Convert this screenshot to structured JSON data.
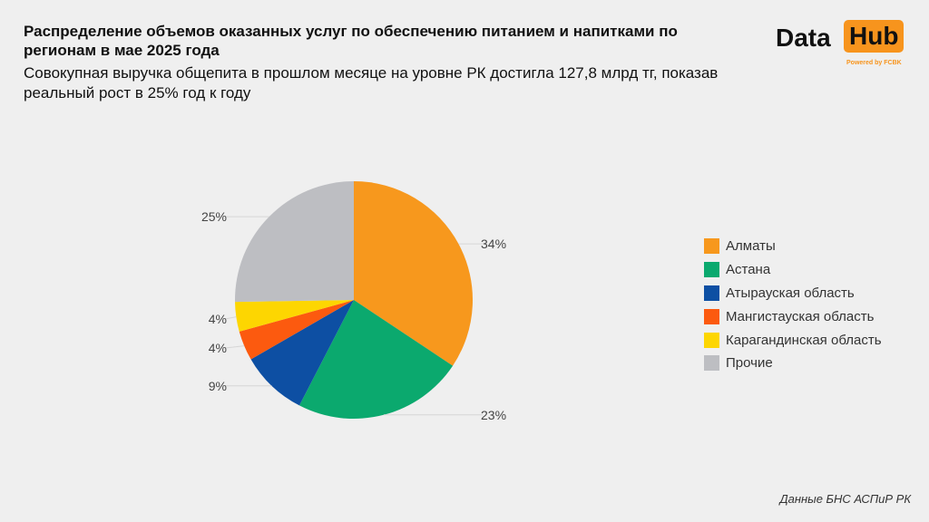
{
  "title": "Распределение объемов оказанных услуг по обеспечению питанием и напитками по регионам в мае 2025 года",
  "subtitle": "Совокупная выручка общепита в прошлом месяце на уровне РК достигла 127,8 млрд тг, показав реальный рост в 25% год к году",
  "logo": {
    "data": "Data",
    "hub": "Hub",
    "powered": "Powered by FCBK",
    "accent": "#f7941d"
  },
  "source": "Данные БНС АСПиР РК",
  "chart_data": {
    "type": "pie",
    "categories": [
      "Алматы",
      "Астана",
      "Атырауская область",
      "Мангистауская область",
      "Карагандинская область",
      "Прочие"
    ],
    "values": [
      34,
      23,
      9,
      4,
      4,
      25
    ],
    "labels": [
      "34%",
      "23%",
      "9%",
      "4%",
      "4%",
      "25%"
    ],
    "colors": [
      "#f7981d",
      "#0ba96e",
      "#0d4fa3",
      "#fc5a0f",
      "#fdd601",
      "#bdbec2"
    ],
    "start": "top, clockwise",
    "legend": "right"
  }
}
